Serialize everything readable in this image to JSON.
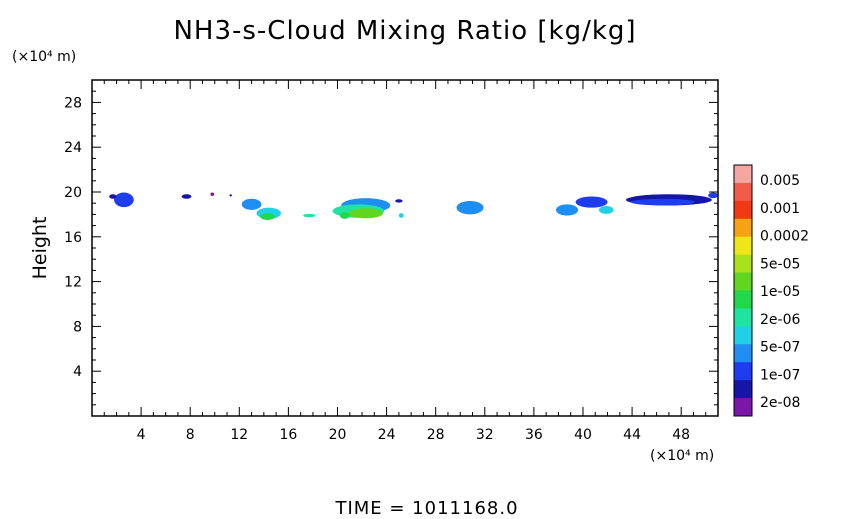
{
  "chart_data": {
    "type": "heatmap",
    "title": "NH3-s-Cloud Mixing Ratio [kg/kg]",
    "ylabel": "Height",
    "y_unit": "(×10⁴ m)",
    "x_unit": "(×10⁴ m)",
    "footer": "TIME =  1011168.0",
    "xlim": [
      0,
      51
    ],
    "ylim": [
      0,
      30
    ],
    "xticks": [
      4,
      8,
      12,
      16,
      20,
      24,
      28,
      32,
      36,
      40,
      44,
      48
    ],
    "yticks": [
      4,
      8,
      12,
      16,
      20,
      24,
      28
    ],
    "colorbar": {
      "labels": [
        "0.005",
        "0.001",
        "0.0002",
        "5e-05",
        "1e-05",
        "2e-06",
        "5e-07",
        "1e-07",
        "2e-08"
      ],
      "colors": [
        "#f4a6a0",
        "#f25a4a",
        "#f03a14",
        "#f5a213",
        "#efe617",
        "#a8e21a",
        "#5fd61f",
        "#20d84a",
        "#20e3a2",
        "#1fd0e6",
        "#1f8ef2",
        "#1e3cf0",
        "#1515a8",
        "#7a17a8"
      ]
    },
    "clouds": [
      {
        "x": 2.6,
        "y": 19.3,
        "w": 1.6,
        "h": 1.3,
        "level": 11
      },
      {
        "x": 1.7,
        "y": 19.6,
        "w": 0.6,
        "h": 0.4,
        "level": 12
      },
      {
        "x": 7.7,
        "y": 19.6,
        "w": 0.8,
        "h": 0.4,
        "level": 12
      },
      {
        "x": 9.8,
        "y": 19.8,
        "w": 0.3,
        "h": 0.3,
        "level": 13
      },
      {
        "x": 11.3,
        "y": 19.7,
        "w": 0.2,
        "h": 0.2,
        "level": 12
      },
      {
        "x": 13.0,
        "y": 18.9,
        "w": 1.6,
        "h": 1.0,
        "level": 10
      },
      {
        "x": 14.4,
        "y": 18.1,
        "w": 2.0,
        "h": 1.0,
        "level": 9
      },
      {
        "x": 14.3,
        "y": 17.8,
        "w": 1.2,
        "h": 0.6,
        "level": 7
      },
      {
        "x": 17.7,
        "y": 17.9,
        "w": 1.0,
        "h": 0.3,
        "level": 8
      },
      {
        "x": 22.3,
        "y": 18.8,
        "w": 4.0,
        "h": 1.3,
        "level": 10
      },
      {
        "x": 21.7,
        "y": 18.3,
        "w": 4.2,
        "h": 1.2,
        "level": 8
      },
      {
        "x": 22.3,
        "y": 18.1,
        "w": 2.8,
        "h": 0.9,
        "level": 6
      },
      {
        "x": 20.6,
        "y": 17.9,
        "w": 0.8,
        "h": 0.6,
        "level": 7
      },
      {
        "x": 25.0,
        "y": 19.2,
        "w": 0.6,
        "h": 0.3,
        "level": 12
      },
      {
        "x": 25.2,
        "y": 17.9,
        "w": 0.4,
        "h": 0.4,
        "level": 9
      },
      {
        "x": 30.8,
        "y": 18.6,
        "w": 2.2,
        "h": 1.2,
        "level": 10
      },
      {
        "x": 38.7,
        "y": 18.4,
        "w": 1.8,
        "h": 1.0,
        "level": 10
      },
      {
        "x": 40.7,
        "y": 19.1,
        "w": 2.6,
        "h": 1.0,
        "level": 11
      },
      {
        "x": 41.9,
        "y": 18.4,
        "w": 1.2,
        "h": 0.7,
        "level": 9
      },
      {
        "x": 47.0,
        "y": 19.3,
        "w": 7.0,
        "h": 1.0,
        "level": 12
      },
      {
        "x": 46.5,
        "y": 19.1,
        "w": 5.2,
        "h": 0.6,
        "level": 11
      },
      {
        "x": 50.6,
        "y": 19.7,
        "w": 0.8,
        "h": 0.5,
        "level": 11
      }
    ]
  }
}
